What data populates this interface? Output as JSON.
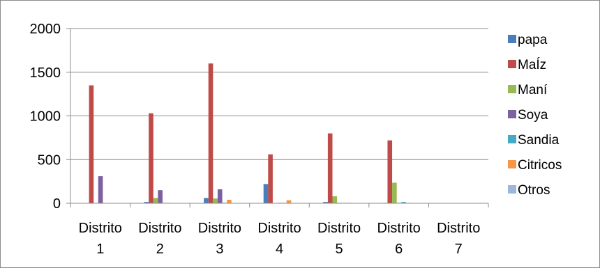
{
  "chart_data": {
    "type": "bar",
    "categories": [
      [
        "Distrito",
        "1"
      ],
      [
        "Distrito",
        "2"
      ],
      [
        "Distrito",
        "3"
      ],
      [
        "Distrito",
        "4"
      ],
      [
        "Distrito",
        "5"
      ],
      [
        "Distrito",
        "6"
      ],
      [
        "Distrito",
        "7"
      ]
    ],
    "series": [
      {
        "name": "papa",
        "color": "#4a7ebb",
        "values": [
          0,
          15,
          60,
          220,
          15,
          5,
          0
        ]
      },
      {
        "name": "MaÍz",
        "color": "#be4b48",
        "values": [
          1350,
          1030,
          1600,
          560,
          800,
          720,
          0
        ]
      },
      {
        "name": "Maní",
        "color": "#98b954",
        "values": [
          0,
          60,
          55,
          0,
          80,
          235,
          0
        ]
      },
      {
        "name": "Soya",
        "color": "#7d60a0",
        "values": [
          310,
          150,
          160,
          5,
          5,
          5,
          0
        ]
      },
      {
        "name": "Sandia",
        "color": "#46aac5",
        "values": [
          0,
          5,
          5,
          5,
          5,
          15,
          0
        ]
      },
      {
        "name": "Citricos",
        "color": "#f79646",
        "values": [
          0,
          5,
          40,
          35,
          5,
          5,
          0
        ]
      },
      {
        "name": "Otros",
        "color": "#9bb7dd",
        "values": [
          0,
          0,
          0,
          0,
          0,
          0,
          0
        ]
      }
    ],
    "ylim": [
      0,
      2000
    ],
    "yticks": [
      0,
      500,
      1000,
      1500,
      2000
    ],
    "grid": true,
    "legend_position": "right",
    "title": "",
    "xlabel": "",
    "ylabel": ""
  }
}
